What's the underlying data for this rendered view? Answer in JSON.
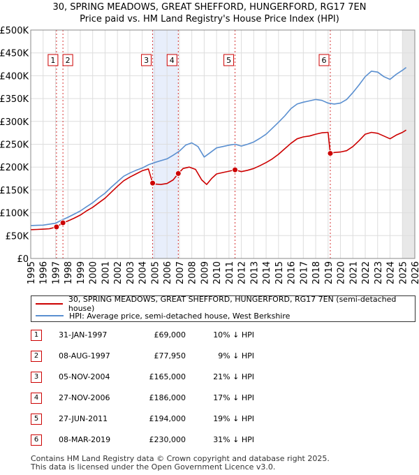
{
  "chart_data": {
    "type": "line",
    "title": "30, SPRING MEADOWS, GREAT SHEFFORD, HUNGERFORD, RG17 7EN",
    "subtitle": "Price paid vs. HM Land Registry's House Price Index (HPI)",
    "xlim": [
      1995,
      2026
    ],
    "ylim": [
      0,
      500000
    ],
    "x_ticks": [
      "1995",
      "1996",
      "1997",
      "1998",
      "1999",
      "2000",
      "2001",
      "2002",
      "2003",
      "2004",
      "2005",
      "2006",
      "2007",
      "2008",
      "2009",
      "2010",
      "2011",
      "2012",
      "2013",
      "2014",
      "2015",
      "2016",
      "2017",
      "2018",
      "2019",
      "2020",
      "2021",
      "2022",
      "2023",
      "2024",
      "2025",
      "2026"
    ],
    "y_ticks": [
      {
        "value": 0,
        "label": "£0"
      },
      {
        "value": 50000,
        "label": "£50K"
      },
      {
        "value": 100000,
        "label": "£100K"
      },
      {
        "value": 150000,
        "label": "£150K"
      },
      {
        "value": 200000,
        "label": "£200K"
      },
      {
        "value": 250000,
        "label": "£250K"
      },
      {
        "value": 300000,
        "label": "£300K"
      },
      {
        "value": 350000,
        "label": "£350K"
      },
      {
        "value": 400000,
        "label": "£400K"
      },
      {
        "value": 450000,
        "label": "£450K"
      },
      {
        "value": 500000,
        "label": "£500K"
      }
    ],
    "grid": true,
    "shaded_ranges": [
      [
        2004.84,
        2006.91
      ],
      [
        2025.0,
        2026.0
      ]
    ],
    "series": [
      {
        "name": "30, SPRING MEADOWS, GREAT SHEFFORD, HUNGERFORD, RG17 7EN (semi-detached house)",
        "color": "#cc0000",
        "x": [
          1995.0,
          1995.5,
          1996.0,
          1996.5,
          1997.08,
          1997.6,
          1998.0,
          1998.5,
          1999.0,
          1999.5,
          2000.0,
          2000.5,
          2001.0,
          2001.5,
          2002.0,
          2002.5,
          2003.0,
          2003.5,
          2004.0,
          2004.5,
          2004.84,
          2005.0,
          2005.5,
          2006.0,
          2006.5,
          2006.91,
          2007.3,
          2007.8,
          2008.3,
          2008.8,
          2009.2,
          2009.6,
          2010.0,
          2010.5,
          2011.0,
          2011.49,
          2012.0,
          2012.5,
          2013.0,
          2013.5,
          2014.0,
          2014.5,
          2015.0,
          2015.5,
          2016.0,
          2016.5,
          2017.0,
          2017.5,
          2018.0,
          2018.5,
          2019.0,
          2019.18,
          2019.5,
          2020.0,
          2020.5,
          2021.0,
          2021.5,
          2022.0,
          2022.5,
          2023.0,
          2023.5,
          2024.0,
          2024.5,
          2025.0,
          2025.3
        ],
        "y": [
          63000,
          63500,
          64000,
          65000,
          69000,
          77950,
          82000,
          88000,
          95000,
          104000,
          112000,
          122000,
          132000,
          145000,
          158000,
          170000,
          178000,
          185000,
          192000,
          196000,
          165000,
          163000,
          162000,
          164000,
          172000,
          186000,
          197000,
          200000,
          195000,
          172000,
          162000,
          175000,
          185000,
          188000,
          191000,
          194000,
          190000,
          193000,
          197000,
          203000,
          210000,
          218000,
          228000,
          240000,
          252000,
          262000,
          266000,
          268000,
          272000,
          275000,
          276000,
          230000,
          232000,
          233000,
          236000,
          245000,
          258000,
          272000,
          276000,
          274000,
          268000,
          262000,
          270000,
          276000,
          281000
        ]
      },
      {
        "name": "HPI: Average price, semi-detached house, West Berkshire",
        "color": "#5a8fd0",
        "x": [
          1995.0,
          1995.5,
          1996.0,
          1996.5,
          1997.0,
          1997.5,
          1998.0,
          1998.5,
          1999.0,
          1999.5,
          2000.0,
          2000.5,
          2001.0,
          2001.5,
          2002.0,
          2002.5,
          2003.0,
          2003.5,
          2004.0,
          2004.5,
          2005.0,
          2005.5,
          2006.0,
          2006.5,
          2007.0,
          2007.5,
          2008.0,
          2008.5,
          2009.0,
          2009.5,
          2010.0,
          2010.5,
          2011.0,
          2011.5,
          2012.0,
          2012.5,
          2013.0,
          2013.5,
          2014.0,
          2014.5,
          2015.0,
          2015.5,
          2016.0,
          2016.5,
          2017.0,
          2017.5,
          2018.0,
          2018.5,
          2019.0,
          2019.5,
          2020.0,
          2020.5,
          2021.0,
          2021.5,
          2022.0,
          2022.5,
          2023.0,
          2023.5,
          2024.0,
          2024.5,
          2025.0,
          2025.3
        ],
        "y": [
          72000,
          72500,
          73000,
          75000,
          77000,
          84000,
          90000,
          97000,
          104000,
          113000,
          122000,
          133000,
          143000,
          156000,
          168000,
          180000,
          187000,
          193000,
          198000,
          205000,
          210000,
          214000,
          218000,
          226000,
          235000,
          248000,
          253000,
          245000,
          222000,
          232000,
          242000,
          245000,
          248000,
          250000,
          246000,
          250000,
          255000,
          263000,
          272000,
          285000,
          298000,
          312000,
          328000,
          338000,
          342000,
          345000,
          348000,
          346000,
          340000,
          338000,
          340000,
          348000,
          363000,
          380000,
          398000,
          410000,
          408000,
          398000,
          392000,
          403000,
          412000,
          418000
        ]
      }
    ],
    "markers": [
      {
        "n": "1",
        "x": 1997.08,
        "y": 69000
      },
      {
        "n": "2",
        "x": 1997.6,
        "y": 77950
      },
      {
        "n": "3",
        "x": 2004.84,
        "y": 165000
      },
      {
        "n": "4",
        "x": 2006.91,
        "y": 186000
      },
      {
        "n": "5",
        "x": 2011.49,
        "y": 194000
      },
      {
        "n": "6",
        "x": 2019.18,
        "y": 230000
      }
    ]
  },
  "legend": {
    "property_label": "30, SPRING MEADOWS, GREAT SHEFFORD, HUNGERFORD, RG17 7EN (semi-detached house)",
    "hpi_label": "HPI: Average price, semi-detached house, West Berkshire"
  },
  "sales": [
    {
      "n": "1",
      "date": "31-JAN-1997",
      "price": "£69,000",
      "hpi": "10% ↓ HPI"
    },
    {
      "n": "2",
      "date": "08-AUG-1997",
      "price": "£77,950",
      "hpi": "9% ↓ HPI"
    },
    {
      "n": "3",
      "date": "05-NOV-2004",
      "price": "£165,000",
      "hpi": "21% ↓ HPI"
    },
    {
      "n": "4",
      "date": "27-NOV-2006",
      "price": "£186,000",
      "hpi": "17% ↓ HPI"
    },
    {
      "n": "5",
      "date": "27-JUN-2011",
      "price": "£194,000",
      "hpi": "19% ↓ HPI"
    },
    {
      "n": "6",
      "date": "08-MAR-2019",
      "price": "£230,000",
      "hpi": "31% ↓ HPI"
    }
  ],
  "footer": {
    "line1": "Contains HM Land Registry data © Crown copyright and database right 2025.",
    "line2": "This data is licensed under the Open Government Licence v3.0."
  }
}
